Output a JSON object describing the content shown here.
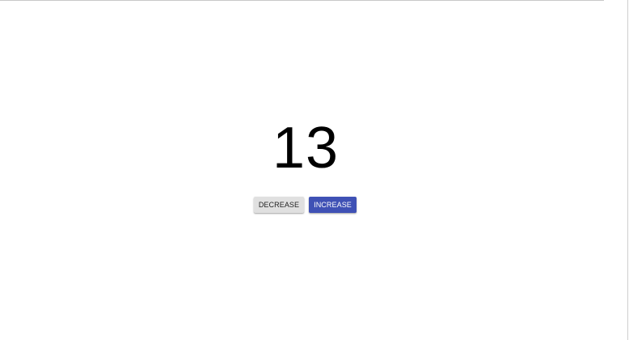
{
  "counter": {
    "value": "13"
  },
  "buttons": {
    "decrease_label": "DECREASE",
    "increase_label": "INCREASE"
  },
  "colors": {
    "primary": "#3f51b5",
    "default_button": "#e0e0e0"
  }
}
